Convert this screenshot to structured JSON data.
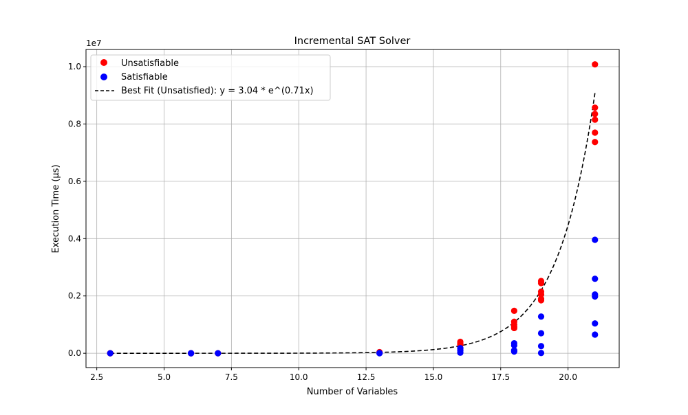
{
  "chart_data": {
    "type": "scatter",
    "title": "Incremental SAT Solver",
    "xlabel": "Number of Variables",
    "ylabel": "Execution Time (µs)",
    "y_scale_label": "1e7",
    "xlim": [
      2.1,
      21.9
    ],
    "ylim": [
      -0.05,
      1.06
    ],
    "y_unit_multiplier": 10000000,
    "x_ticks": [
      2.5,
      5.0,
      7.5,
      10.0,
      12.5,
      15.0,
      17.5,
      20.0
    ],
    "x_tick_labels": [
      "2.5",
      "5.0",
      "7.5",
      "10.0",
      "12.5",
      "15.0",
      "17.5",
      "20.0"
    ],
    "y_ticks": [
      0.0,
      0.2,
      0.4,
      0.6,
      0.8,
      1.0
    ],
    "y_tick_labels": [
      "0.0",
      "0.2",
      "0.4",
      "0.6",
      "0.8",
      "1.0"
    ],
    "grid": true,
    "legend_position": "top-left",
    "series": [
      {
        "name": "Unsatisfiable",
        "kind": "scatter",
        "color": "#ff0000",
        "points": [
          [
            3,
            0.0
          ],
          [
            3,
            0.0
          ],
          [
            6,
            0.0
          ],
          [
            6,
            0.0
          ],
          [
            7,
            0.0
          ],
          [
            13,
            0.004
          ],
          [
            13,
            0.002
          ],
          [
            16,
            0.04
          ],
          [
            16,
            0.035
          ],
          [
            16,
            0.03
          ],
          [
            18,
            0.148
          ],
          [
            18,
            0.11
          ],
          [
            18,
            0.1
          ],
          [
            18,
            0.093
          ],
          [
            18,
            0.088
          ],
          [
            19,
            0.252
          ],
          [
            19,
            0.245
          ],
          [
            19,
            0.215
          ],
          [
            19,
            0.205
          ],
          [
            19,
            0.19
          ],
          [
            19,
            0.185
          ],
          [
            21,
            1.008
          ],
          [
            21,
            0.857
          ],
          [
            21,
            0.835
          ],
          [
            21,
            0.815
          ],
          [
            21,
            0.77
          ],
          [
            21,
            0.737
          ]
        ]
      },
      {
        "name": "Satisfiable",
        "kind": "scatter",
        "color": "#0000ff",
        "points": [
          [
            3,
            0.0
          ],
          [
            6,
            0.0
          ],
          [
            6,
            0.0
          ],
          [
            7,
            0.0
          ],
          [
            13,
            0.001
          ],
          [
            13,
            0.0
          ],
          [
            16,
            0.018
          ],
          [
            16,
            0.01
          ],
          [
            16,
            0.002
          ],
          [
            18,
            0.035
          ],
          [
            18,
            0.028
          ],
          [
            18,
            0.01
          ],
          [
            18,
            0.006
          ],
          [
            19,
            0.128
          ],
          [
            19,
            0.07
          ],
          [
            19,
            0.025
          ],
          [
            19,
            0.001
          ],
          [
            21,
            0.396
          ],
          [
            21,
            0.26
          ],
          [
            21,
            0.205
          ],
          [
            21,
            0.198
          ],
          [
            21,
            0.104
          ],
          [
            21,
            0.065
          ]
        ]
      },
      {
        "name": "Best Fit (Unsatisfied): y = 3.04 * e^(0.71x)",
        "kind": "line",
        "color": "#000000",
        "dash": "dashed",
        "fit": {
          "a": 3.04,
          "b": 0.71,
          "x_range": [
            3,
            21
          ]
        }
      }
    ]
  }
}
